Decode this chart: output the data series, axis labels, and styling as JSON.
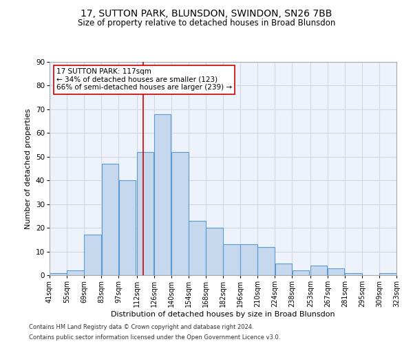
{
  "title_line1": "17, SUTTON PARK, BLUNSDON, SWINDON, SN26 7BB",
  "title_line2": "Size of property relative to detached houses in Broad Blunsdon",
  "xlabel": "Distribution of detached houses by size in Broad Blunsdon",
  "ylabel": "Number of detached properties",
  "footnote1": "Contains HM Land Registry data © Crown copyright and database right 2024.",
  "footnote2": "Contains public sector information licensed under the Open Government Licence v3.0.",
  "bar_color": "#c5d8ed",
  "bar_edge_color": "#5b9bd5",
  "grid_color": "#d0d8e8",
  "bg_color": "#eef3fb",
  "vline_x": 117,
  "vline_color": "#cc0000",
  "annotation_text": "17 SUTTON PARK: 117sqm\n← 34% of detached houses are smaller (123)\n66% of semi-detached houses are larger (239) →",
  "annotation_box_color": "#ffffff",
  "annotation_box_edge": "#cc0000",
  "bins": [
    41,
    55,
    69,
    83,
    97,
    112,
    126,
    140,
    154,
    168,
    182,
    196,
    210,
    224,
    238,
    253,
    267,
    281,
    295,
    309,
    323
  ],
  "counts": [
    1,
    2,
    17,
    47,
    40,
    52,
    68,
    52,
    23,
    20,
    13,
    13,
    12,
    5,
    2,
    4,
    3,
    1,
    0,
    1
  ],
  "xlim": [
    41,
    323
  ],
  "ylim": [
    0,
    90
  ],
  "yticks": [
    0,
    10,
    20,
    30,
    40,
    50,
    60,
    70,
    80,
    90
  ]
}
